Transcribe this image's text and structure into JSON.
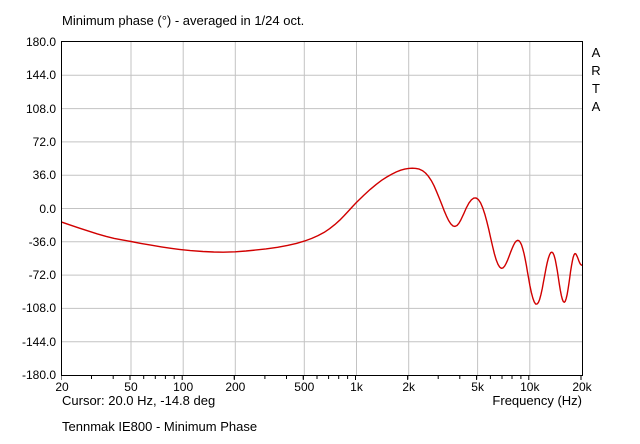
{
  "watermark": {
    "letters": [
      "A",
      "R",
      "T",
      "A"
    ]
  },
  "footer": {
    "cursor_text": "Cursor: 20.0 Hz, -14.8 deg",
    "measurement_title": "Tennmak IE800 - Minimum Phase"
  },
  "chart_data": {
    "type": "line",
    "title": "Minimum phase (°) - averaged in 1/24 oct.",
    "xlabel": "Frequency (Hz)",
    "ylabel": "",
    "x_scale": "log",
    "xlim": [
      20,
      20000
    ],
    "ylim": [
      -180,
      180
    ],
    "grid": true,
    "legend": "none",
    "y_ticks": [
      {
        "v": 180,
        "label": "180.0"
      },
      {
        "v": 144,
        "label": "144.0"
      },
      {
        "v": 108,
        "label": "108.0"
      },
      {
        "v": 72,
        "label": "72.0"
      },
      {
        "v": 36,
        "label": "36.0"
      },
      {
        "v": 0,
        "label": "0.0"
      },
      {
        "v": -36,
        "label": "-36.0"
      },
      {
        "v": -72,
        "label": "-72.0"
      },
      {
        "v": -108,
        "label": "-108.0"
      },
      {
        "v": -144,
        "label": "-144.0"
      },
      {
        "v": -180,
        "label": "-180.0"
      }
    ],
    "x_ticks": [
      {
        "v": 20,
        "label": "20"
      },
      {
        "v": 50,
        "label": "50"
      },
      {
        "v": 100,
        "label": "100"
      },
      {
        "v": 200,
        "label": "200"
      },
      {
        "v": 500,
        "label": "500"
      },
      {
        "v": 1000,
        "label": "1k"
      },
      {
        "v": 2000,
        "label": "2k"
      },
      {
        "v": 5000,
        "label": "5k"
      },
      {
        "v": 10000,
        "label": "10k"
      },
      {
        "v": 20000,
        "label": "20k"
      }
    ],
    "series": [
      {
        "name": "Tennmak IE800 - Minimum Phase",
        "color": "#d10000",
        "points": [
          [
            20,
            -14.8
          ],
          [
            22,
            -17.5
          ],
          [
            25,
            -21
          ],
          [
            28,
            -24
          ],
          [
            32,
            -27.5
          ],
          [
            36,
            -30.2
          ],
          [
            40,
            -32.3
          ],
          [
            45,
            -34.2
          ],
          [
            50,
            -35.7
          ],
          [
            57,
            -37.7
          ],
          [
            65,
            -39.6
          ],
          [
            75,
            -41.5
          ],
          [
            85,
            -43
          ],
          [
            95,
            -44.2
          ],
          [
            110,
            -45.5
          ],
          [
            130,
            -46.5
          ],
          [
            150,
            -47
          ],
          [
            170,
            -47.2
          ],
          [
            200,
            -46.8
          ],
          [
            230,
            -46
          ],
          [
            260,
            -45
          ],
          [
            300,
            -43.7
          ],
          [
            350,
            -41.9
          ],
          [
            400,
            -39.9
          ],
          [
            450,
            -37.7
          ],
          [
            500,
            -35.2
          ],
          [
            550,
            -32.4
          ],
          [
            600,
            -29.3
          ],
          [
            650,
            -25.8
          ],
          [
            700,
            -21.8
          ],
          [
            750,
            -17.4
          ],
          [
            800,
            -12.6
          ],
          [
            850,
            -7.6
          ],
          [
            900,
            -2.6
          ],
          [
            950,
            2.2
          ],
          [
            1000,
            6.6
          ],
          [
            1100,
            14.2
          ],
          [
            1200,
            20.6
          ],
          [
            1300,
            26
          ],
          [
            1400,
            30.6
          ],
          [
            1500,
            34.2
          ],
          [
            1600,
            37.2
          ],
          [
            1700,
            39.6
          ],
          [
            1800,
            41.4
          ],
          [
            1900,
            42.6
          ],
          [
            2000,
            43.3
          ],
          [
            2100,
            43.6
          ],
          [
            2200,
            43.4
          ],
          [
            2300,
            42.6
          ],
          [
            2400,
            41
          ],
          [
            2500,
            38.4
          ],
          [
            2600,
            34.8
          ],
          [
            2700,
            30.2
          ],
          [
            2800,
            24.6
          ],
          [
            2900,
            18.2
          ],
          [
            3000,
            11.4
          ],
          [
            3100,
            4.6
          ],
          [
            3200,
            -2
          ],
          [
            3300,
            -8
          ],
          [
            3400,
            -13
          ],
          [
            3500,
            -16.6
          ],
          [
            3600,
            -18.8
          ],
          [
            3700,
            -19.4
          ],
          [
            3800,
            -18.4
          ],
          [
            3900,
            -16
          ],
          [
            4000,
            -12.4
          ],
          [
            4150,
            -6
          ],
          [
            4300,
            0.6
          ],
          [
            4450,
            5.8
          ],
          [
            4600,
            9.4
          ],
          [
            4750,
            11.2
          ],
          [
            4900,
            11.4
          ],
          [
            5050,
            9.6
          ],
          [
            5200,
            6
          ],
          [
            5350,
            0.8
          ],
          [
            5500,
            -6
          ],
          [
            5650,
            -14
          ],
          [
            5800,
            -22.8
          ],
          [
            5950,
            -32
          ],
          [
            6100,
            -41
          ],
          [
            6250,
            -49
          ],
          [
            6400,
            -55.6
          ],
          [
            6550,
            -60.4
          ],
          [
            6700,
            -63.4
          ],
          [
            6850,
            -64.6
          ],
          [
            7000,
            -64.2
          ],
          [
            7150,
            -62.4
          ],
          [
            7300,
            -59.4
          ],
          [
            7450,
            -55.6
          ],
          [
            7600,
            -51.4
          ],
          [
            7750,
            -47.2
          ],
          [
            7900,
            -43.2
          ],
          [
            8050,
            -39.8
          ],
          [
            8200,
            -37
          ],
          [
            8350,
            -35.2
          ],
          [
            8500,
            -34.4
          ],
          [
            8650,
            -34.8
          ],
          [
            8800,
            -36.4
          ],
          [
            8950,
            -39.2
          ],
          [
            9100,
            -43.4
          ],
          [
            9250,
            -48.6
          ],
          [
            9400,
            -54.8
          ],
          [
            9550,
            -61.6
          ],
          [
            9700,
            -68.8
          ],
          [
            9850,
            -76
          ],
          [
            10000,
            -82.8
          ],
          [
            10200,
            -90.6
          ],
          [
            10400,
            -96.8
          ],
          [
            10600,
            -101
          ],
          [
            10800,
            -103.2
          ],
          [
            11000,
            -103.4
          ],
          [
            11200,
            -101.6
          ],
          [
            11400,
            -98
          ],
          [
            11600,
            -92.8
          ],
          [
            11800,
            -86.4
          ],
          [
            12000,
            -79.2
          ],
          [
            12200,
            -71.8
          ],
          [
            12400,
            -64.8
          ],
          [
            12600,
            -58.6
          ],
          [
            12800,
            -53.6
          ],
          [
            13000,
            -50
          ],
          [
            13200,
            -47.8
          ],
          [
            13400,
            -47.2
          ],
          [
            13600,
            -48.2
          ],
          [
            13800,
            -50.8
          ],
          [
            14000,
            -55
          ],
          [
            14200,
            -60.6
          ],
          [
            14400,
            -67.2
          ],
          [
            14600,
            -74.4
          ],
          [
            14800,
            -81.6
          ],
          [
            15000,
            -88.2
          ],
          [
            15200,
            -93.8
          ],
          [
            15400,
            -98
          ],
          [
            15600,
            -100.6
          ],
          [
            15800,
            -101.4
          ],
          [
            16000,
            -100.4
          ],
          [
            16200,
            -97.6
          ],
          [
            16400,
            -93.2
          ],
          [
            16600,
            -87.6
          ],
          [
            16800,
            -81.2
          ],
          [
            17000,
            -74.4
          ],
          [
            17200,
            -67.8
          ],
          [
            17400,
            -61.8
          ],
          [
            17600,
            -56.6
          ],
          [
            17800,
            -52.6
          ],
          [
            18000,
            -50
          ],
          [
            18200,
            -48.8
          ],
          [
            18400,
            -49
          ],
          [
            18600,
            -50.4
          ],
          [
            18800,
            -52.2
          ],
          [
            19000,
            -54.4
          ],
          [
            19200,
            -56.8
          ],
          [
            19400,
            -58.8
          ],
          [
            19600,
            -60.2
          ],
          [
            19800,
            -61
          ],
          [
            20000,
            -61.4
          ]
        ]
      }
    ]
  }
}
